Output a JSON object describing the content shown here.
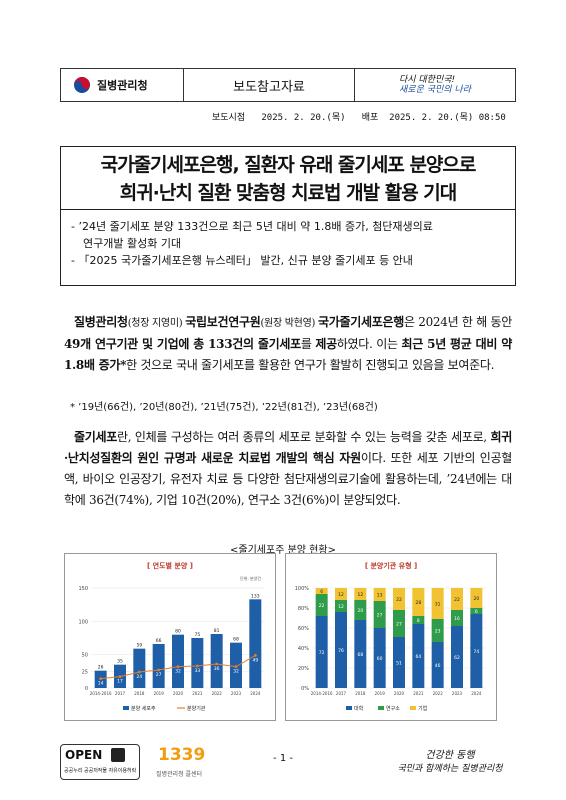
{
  "header": {
    "org_name": "질병관리청",
    "doc_type": "보도참고자료",
    "slogan_line1": "다시 대한민국!",
    "slogan_line2": "새로운 국민의 나라"
  },
  "dates": {
    "text": "보도시점   2025. 2. 20.(목)   배포  2025. 2. 20.(목) 08:50"
  },
  "title": {
    "line1": "국가줄기세포은행, 질환자 유래 줄기세포 분양으로",
    "line2": "희귀·난치 질환 맞춤형 치료법 개발 활용 기대"
  },
  "summary": {
    "item1_line1": "- ’24년 줄기세포 분양 133건으로 최근 5년 대비 약 1.8배 증가, 첨단재생의료",
    "item1_line2": "연구개발 활성화 기대",
    "item2": "- 「2025 국가줄기세포은행 뉴스레터」 발간, 신규 분양 줄기세포 등 안내"
  },
  "body": {
    "p1_a": "질병관리청",
    "p1_b": "(청장 지영미) ",
    "p1_c": "국립보건연구원",
    "p1_d": "(원장 박현영) ",
    "p1_e": "국가줄기세포은행",
    "p1_f": "은 2024년 한 해 동안 ",
    "p1_g": "49개 연구기관 및 기업에 총 133건의 줄기세포",
    "p1_h": "를 ",
    "p1_i": "제공",
    "p1_j": "하였다. 이는 ",
    "p1_k": "최근 5년 평균 대비 약 1.8배 증가*",
    "p1_l": "한 것으로 국내 줄기세포를 활용한 연구가 활발히 진행되고 있음을 보여준다.",
    "note": "* ’19년(66건), ’20년(80건), ’21년(75건), ’22년(81건), ’23년(68건)",
    "p2_a": "줄기세포",
    "p2_b": "란, 인체를 구성하는 여러 종류의 세포로 분화할 수 있는 능력을 갖춘 세포로, ",
    "p2_c": "희귀·난치성질환의 원인 규명과 새로운 치료법 개발의 핵심 자원",
    "p2_d": "이다. 또한 세포 기반의 인공혈액, 바이오 인공장기, 유전자 치료 등 다양한 첨단재생의료기술에 활용하는데, ’24년에는 대학에 36건(74%), 기업 10건(20%), 연구소 3건(6%)이 분양되었다."
  },
  "figure_caption": "<줄기세포주 분양 현황>",
  "footer": {
    "page": "- 1 -",
    "open_label": "OPEN",
    "open_sub": "공공누리 공공저작물 자유이용허락",
    "hotline": "1339",
    "hotline_sub": "질병관리청 콜센터",
    "motto_line1": "건강한 동행",
    "motto_line2": "국민과 함께하는 질병관리청"
  },
  "colors": {
    "bar_blue": "#1f5fa8",
    "line_orange": "#e67e22",
    "univ_blue": "#1f5fa8",
    "inst_green": "#2e9c4a",
    "corp_yellow": "#f1c232"
  },
  "chart_data": [
    {
      "type": "bar",
      "title": "[ 연도별 분양 ]",
      "unit_label": "단위: 분양건",
      "categories": [
        "2014-2016",
        "2017",
        "2018",
        "2019",
        "2020",
        "2021",
        "2022",
        "2023",
        "2024"
      ],
      "series": [
        {
          "name": "분양 세포주",
          "values": [
            26,
            35,
            59,
            66,
            80,
            75,
            81,
            68,
            133
          ]
        },
        {
          "name": "분양기관",
          "values": [
            14,
            17,
            24,
            27,
            32,
            33,
            36,
            32,
            49
          ]
        }
      ],
      "ylim": [
        0,
        150
      ],
      "yticks": [
        0,
        25,
        50,
        100,
        150
      ]
    },
    {
      "type": "bar",
      "title": "[ 분양기관 유형 ]",
      "categories": [
        "2014-2016",
        "2017",
        "2018",
        "2019",
        "2020",
        "2021",
        "2022",
        "2023",
        "2024"
      ],
      "series": [
        {
          "name": "대학",
          "values": [
            72,
            76,
            68,
            60,
            51,
            64,
            46,
            62,
            74
          ]
        },
        {
          "name": "연구소",
          "values": [
            22,
            12,
            20,
            27,
            27,
            8,
            23,
            16,
            6
          ]
        },
        {
          "name": "기업",
          "values": [
            6,
            12,
            12,
            13,
            22,
            28,
            31,
            22,
            20
          ]
        }
      ],
      "yticks_label": [
        "0%",
        "20%",
        "40%",
        "60%",
        "80%",
        "100%"
      ]
    }
  ]
}
